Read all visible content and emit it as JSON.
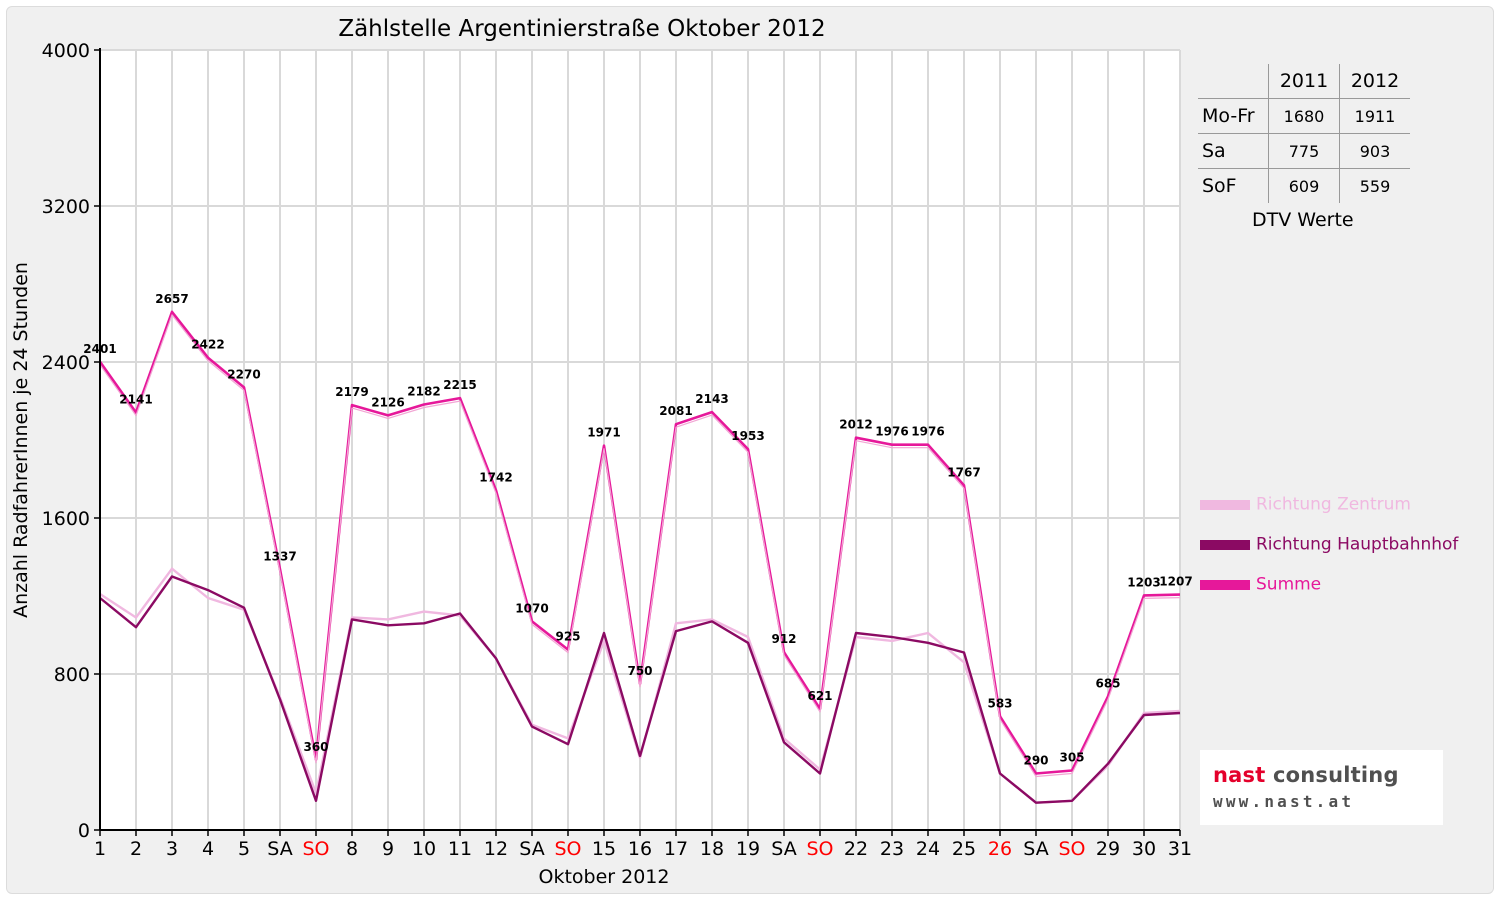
{
  "chart_data": {
    "type": "line",
    "title": "Zählstelle Argentinierstraße Oktober 2012",
    "xlabel": "Oktober 2012",
    "ylabel": "Anzahl RadfahrerInnen je 24 Stunden",
    "ylim": [
      0,
      4000
    ],
    "yticks": [
      "0",
      "800",
      "1600",
      "2400",
      "3200",
      "4000"
    ],
    "categories": [
      "1",
      "2",
      "3",
      "4",
      "5",
      "SA",
      "SO",
      "8",
      "9",
      "10",
      "11",
      "12",
      "SA",
      "SO",
      "15",
      "16",
      "17",
      "18",
      "19",
      "SA",
      "SO",
      "22",
      "23",
      "24",
      "25",
      "26",
      "SA",
      "SO",
      "29",
      "30",
      "31"
    ],
    "red_categories": [
      6,
      13,
      20,
      25,
      27
    ],
    "grid": true,
    "legend_position": "right",
    "series": [
      {
        "name": "Richtung Zentrum",
        "color": "#f0b8e0",
        "values": [
          1210,
          1090,
          1340,
          1190,
          1130,
          680,
          190,
          1090,
          1080,
          1120,
          1100,
          880,
          540,
          470,
          970,
          370,
          1060,
          1080,
          990,
          470,
          310,
          990,
          970,
          1010,
          860,
          290,
          140,
          150,
          330,
          600,
          610
        ]
      },
      {
        "name": "Richtung Hauptbahnhof",
        "color": "#8b0a63",
        "values": [
          1190,
          1040,
          1300,
          1230,
          1140,
          670,
          150,
          1080,
          1050,
          1060,
          1110,
          880,
          530,
          440,
          1010,
          380,
          1020,
          1070,
          960,
          450,
          290,
          1010,
          990,
          960,
          910,
          290,
          140,
          150,
          340,
          590,
          600
        ]
      },
      {
        "name": "Summe",
        "color": "#e6189a",
        "values": [
          2401,
          2141,
          2657,
          2422,
          2270,
          1337,
          360,
          2179,
          2126,
          2182,
          2215,
          1742,
          1070,
          925,
          1971,
          750,
          2081,
          2143,
          1953,
          912,
          621,
          2012,
          1976,
          1976,
          1767,
          583,
          290,
          305,
          685,
          1203,
          1207
        ]
      }
    ],
    "data_labels": [
      "2401",
      "2141",
      "2657",
      "2422",
      "2270",
      "1337",
      "360",
      "2179",
      "2126",
      "2182",
      "2215",
      "1742",
      "1070",
      "925",
      "1971",
      "750",
      "2081",
      "2143",
      "1953",
      "912",
      "621",
      "2012",
      "1976",
      "1976",
      "1767",
      "583",
      "290",
      "305",
      "685",
      "1203",
      "1207"
    ]
  },
  "dtv_table": {
    "headers": [
      "2011",
      "2012"
    ],
    "rows": [
      {
        "label": "Mo-Fr",
        "v2011": "1680",
        "v2012": "1911"
      },
      {
        "label": "Sa",
        "v2011": "775",
        "v2012": "903"
      },
      {
        "label": "SoF",
        "v2011": "609",
        "v2012": "559"
      }
    ],
    "caption": "DTV Werte"
  },
  "logo": {
    "word1": "nast",
    "word2": " consulting",
    "url": "www.nast.at",
    "colors": {
      "word1": "#e4002b",
      "word2": "#505050"
    }
  },
  "colors": {
    "background": "#f0f0f0",
    "plot_background": "#ffffff",
    "grid": "#d9d9d9",
    "weekend_label": "#ff0000"
  }
}
